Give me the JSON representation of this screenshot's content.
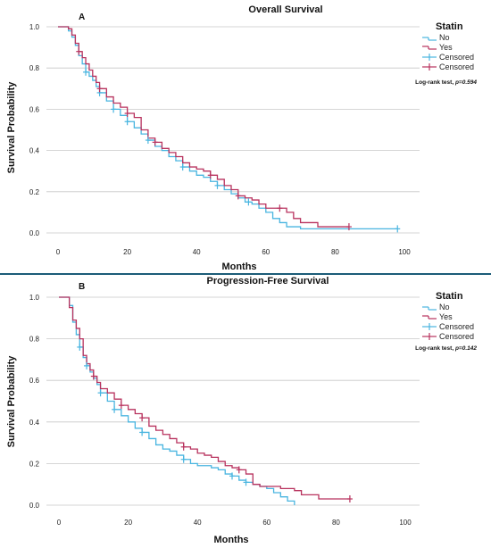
{
  "chart_data": [
    {
      "type": "line",
      "panel_label": "A",
      "title": "Overall Survival",
      "xlabel": "Months",
      "ylabel": "Survival Probability",
      "xlim": [
        0,
        100
      ],
      "ylim": [
        0,
        1.0
      ],
      "x_ticks": [
        "0",
        "20",
        "40",
        "60",
        "80",
        "100"
      ],
      "y_ticks": [
        "0.0",
        "0.2",
        "0.4",
        "0.6",
        "0.8",
        "1.0"
      ],
      "grid": "horizontal",
      "legend_position": "right",
      "legend_title": "Statin",
      "legend": [
        "No",
        "Yes",
        "Censored",
        "Censored"
      ],
      "annotation_prefix": "Log-rank test, ",
      "annotation_p": "p=0.594",
      "colors": {
        "No": "#49b5e0",
        "Yes": "#b8325e"
      },
      "series": [
        {
          "name": "No",
          "x": [
            0,
            3,
            4,
            5,
            6,
            7,
            8,
            9,
            10,
            11,
            12,
            14,
            16,
            18,
            20,
            22,
            24,
            26,
            28,
            30,
            32,
            34,
            36,
            38,
            40,
            42,
            44,
            46,
            48,
            50,
            52,
            54,
            56,
            58,
            60,
            62,
            64,
            66,
            70,
            75,
            80,
            90,
            98
          ],
          "y": [
            1.0,
            0.98,
            0.95,
            0.91,
            0.86,
            0.82,
            0.78,
            0.76,
            0.74,
            0.71,
            0.68,
            0.64,
            0.6,
            0.57,
            0.54,
            0.51,
            0.48,
            0.45,
            0.42,
            0.4,
            0.37,
            0.35,
            0.32,
            0.3,
            0.28,
            0.27,
            0.25,
            0.23,
            0.21,
            0.19,
            0.17,
            0.15,
            0.14,
            0.12,
            0.1,
            0.07,
            0.05,
            0.03,
            0.02,
            0.02,
            0.02,
            0.02,
            0.02
          ],
          "censored_x": [
            8,
            12,
            16,
            20,
            26,
            36,
            46,
            55,
            98
          ]
        },
        {
          "name": "Yes",
          "x": [
            0,
            3,
            4,
            5,
            6,
            7,
            8,
            9,
            10,
            11,
            12,
            14,
            16,
            18,
            20,
            22,
            24,
            26,
            28,
            30,
            32,
            34,
            36,
            38,
            40,
            42,
            44,
            46,
            48,
            50,
            52,
            54,
            56,
            58,
            60,
            62,
            64,
            66,
            68,
            70,
            75,
            80,
            84
          ],
          "y": [
            1.0,
            0.99,
            0.96,
            0.92,
            0.88,
            0.85,
            0.82,
            0.79,
            0.76,
            0.73,
            0.7,
            0.66,
            0.63,
            0.61,
            0.58,
            0.56,
            0.5,
            0.46,
            0.44,
            0.41,
            0.39,
            0.37,
            0.34,
            0.32,
            0.31,
            0.3,
            0.28,
            0.26,
            0.23,
            0.21,
            0.18,
            0.17,
            0.16,
            0.14,
            0.12,
            0.12,
            0.12,
            0.1,
            0.07,
            0.05,
            0.03,
            0.03,
            0.03
          ],
          "censored_x": [
            6,
            12,
            20,
            28,
            44,
            52,
            64,
            84
          ]
        }
      ]
    },
    {
      "type": "line",
      "panel_label": "B",
      "title": "Progression-Free Survival",
      "xlabel": "Months",
      "ylabel": "Survival Probability",
      "xlim": [
        0,
        100
      ],
      "ylim": [
        0,
        1.0
      ],
      "x_ticks": [
        "0",
        "20",
        "40",
        "60",
        "80",
        "100"
      ],
      "y_ticks": [
        "0.0",
        "0.2",
        "0.4",
        "0.6",
        "0.8",
        "1.0"
      ],
      "grid": "horizontal",
      "legend_position": "right",
      "legend_title": "Statin",
      "legend": [
        "No",
        "Yes",
        "Censored",
        "Censored"
      ],
      "annotation_prefix": "Log-rank test, ",
      "annotation_p": "p=0.142",
      "colors": {
        "No": "#49b5e0",
        "Yes": "#b8325e"
      },
      "series": [
        {
          "name": "No",
          "x": [
            0,
            3,
            4,
            5,
            6,
            7,
            8,
            9,
            10,
            11,
            12,
            14,
            16,
            18,
            20,
            22,
            24,
            26,
            28,
            30,
            32,
            34,
            36,
            38,
            40,
            42,
            44,
            46,
            48,
            50,
            52,
            54,
            56,
            58,
            60,
            62,
            64,
            66,
            68
          ],
          "y": [
            1.0,
            0.96,
            0.88,
            0.82,
            0.76,
            0.71,
            0.67,
            0.64,
            0.61,
            0.58,
            0.54,
            0.5,
            0.46,
            0.43,
            0.4,
            0.37,
            0.35,
            0.32,
            0.29,
            0.27,
            0.26,
            0.24,
            0.22,
            0.2,
            0.19,
            0.19,
            0.18,
            0.17,
            0.15,
            0.14,
            0.12,
            0.11,
            0.1,
            0.09,
            0.08,
            0.06,
            0.04,
            0.02,
            0.0
          ],
          "censored_x": [
            6,
            8,
            12,
            16,
            24,
            36,
            50,
            54
          ]
        },
        {
          "name": "Yes",
          "x": [
            0,
            3,
            4,
            5,
            6,
            7,
            8,
            9,
            10,
            11,
            12,
            14,
            16,
            18,
            20,
            22,
            24,
            26,
            28,
            30,
            32,
            34,
            36,
            38,
            40,
            42,
            44,
            46,
            48,
            50,
            52,
            54,
            56,
            58,
            60,
            62,
            64,
            66,
            68,
            70,
            75,
            80,
            84
          ],
          "y": [
            1.0,
            0.95,
            0.89,
            0.85,
            0.8,
            0.72,
            0.68,
            0.65,
            0.62,
            0.59,
            0.56,
            0.54,
            0.51,
            0.48,
            0.46,
            0.44,
            0.42,
            0.38,
            0.36,
            0.34,
            0.32,
            0.3,
            0.28,
            0.27,
            0.25,
            0.24,
            0.23,
            0.21,
            0.19,
            0.18,
            0.17,
            0.15,
            0.1,
            0.09,
            0.09,
            0.09,
            0.08,
            0.08,
            0.07,
            0.05,
            0.03,
            0.03,
            0.03
          ],
          "censored_x": [
            10,
            18,
            24,
            36,
            52,
            84
          ]
        }
      ]
    }
  ]
}
